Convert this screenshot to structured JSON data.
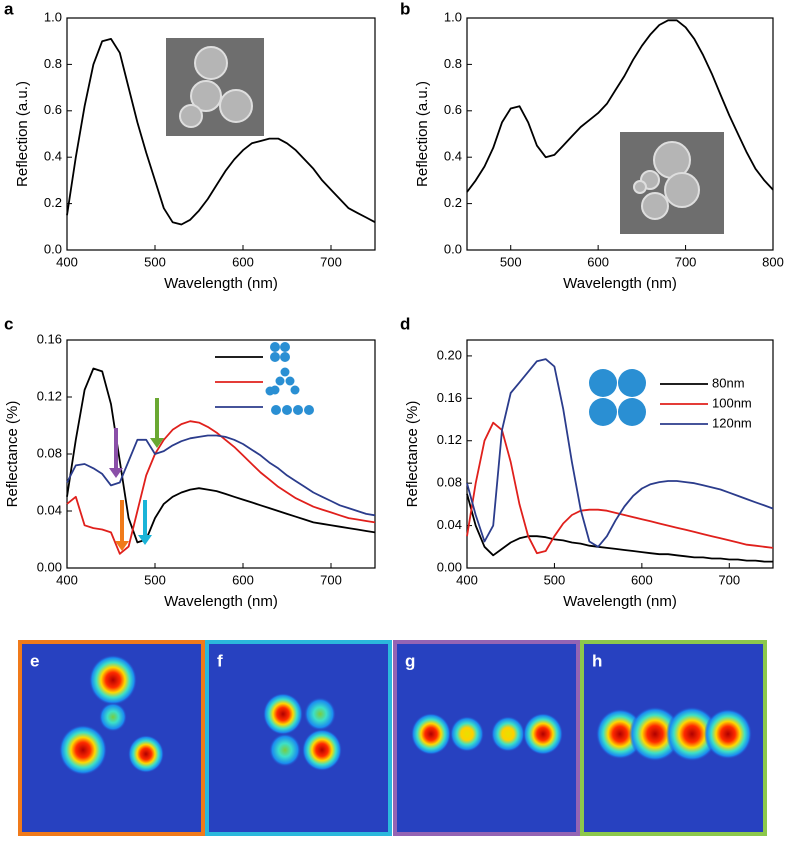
{
  "chart_data": [
    {
      "type": "line",
      "label": "a",
      "x_label": "Wavelength (nm)",
      "y_label": "Reflection (a.u.)",
      "color": "#000000",
      "xlim": [
        400,
        750
      ],
      "xticks": [
        400,
        500,
        600,
        700
      ],
      "ylim": [
        0,
        1
      ],
      "yticks": [
        {
          "value": 0,
          "label": "0.0"
        },
        0.2,
        0.4,
        0.6,
        0.8,
        {
          "value": 1,
          "label": "1.0"
        }
      ],
      "x": [
        400,
        410,
        420,
        430,
        440,
        450,
        460,
        470,
        480,
        490,
        500,
        510,
        520,
        530,
        540,
        550,
        560,
        570,
        580,
        590,
        600,
        610,
        620,
        630,
        640,
        650,
        660,
        670,
        680,
        690,
        700,
        710,
        720,
        730,
        740,
        750
      ],
      "values": [
        0.15,
        0.4,
        0.62,
        0.8,
        0.9,
        0.91,
        0.85,
        0.7,
        0.55,
        0.42,
        0.3,
        0.18,
        0.12,
        0.11,
        0.13,
        0.17,
        0.22,
        0.28,
        0.34,
        0.39,
        0.43,
        0.46,
        0.47,
        0.48,
        0.48,
        0.46,
        0.43,
        0.39,
        0.35,
        0.3,
        0.26,
        0.22,
        0.18,
        0.16,
        0.14,
        0.12
      ]
    },
    {
      "type": "line",
      "label": "b",
      "x_label": "Wavelength (nm)",
      "y_label": "Reflection (a.u.)",
      "color": "#000000",
      "xlim": [
        450,
        800
      ],
      "xticks": [
        500,
        600,
        700,
        800
      ],
      "ylim": [
        0,
        1
      ],
      "yticks": [
        {
          "value": 0,
          "label": "0.0"
        },
        0.2,
        0.4,
        0.6,
        0.8,
        {
          "value": 1,
          "label": "1.0"
        }
      ],
      "x": [
        450,
        460,
        470,
        480,
        490,
        500,
        510,
        520,
        530,
        540,
        550,
        560,
        570,
        580,
        590,
        600,
        610,
        620,
        630,
        640,
        650,
        660,
        670,
        680,
        690,
        700,
        710,
        720,
        730,
        740,
        750,
        760,
        770,
        780,
        790,
        800
      ],
      "values": [
        0.25,
        0.3,
        0.36,
        0.44,
        0.55,
        0.61,
        0.62,
        0.55,
        0.45,
        0.4,
        0.41,
        0.45,
        0.49,
        0.53,
        0.56,
        0.59,
        0.63,
        0.69,
        0.75,
        0.82,
        0.88,
        0.93,
        0.97,
        0.99,
        0.99,
        0.96,
        0.91,
        0.84,
        0.76,
        0.67,
        0.58,
        0.5,
        0.42,
        0.35,
        0.3,
        0.26
      ]
    },
    {
      "type": "line",
      "label": "c",
      "x_label": "Wavelength (nm)",
      "y_label": "Reflectance (%)",
      "xlim": [
        400,
        750
      ],
      "xticks": [
        400,
        500,
        600,
        700
      ],
      "ylim": [
        0,
        0.16
      ],
      "yticks": [
        {
          "value": 0,
          "label": "0.00"
        },
        0.04,
        0.08,
        0.12,
        0.16
      ],
      "x": [
        400,
        410,
        420,
        430,
        440,
        450,
        460,
        470,
        480,
        490,
        500,
        510,
        520,
        530,
        540,
        550,
        560,
        570,
        580,
        590,
        600,
        610,
        620,
        630,
        640,
        650,
        660,
        670,
        680,
        690,
        700,
        710,
        720,
        730,
        740,
        750
      ],
      "series": [
        {
          "color": "#000000",
          "values": [
            0.05,
            0.09,
            0.125,
            0.14,
            0.138,
            0.115,
            0.075,
            0.035,
            0.018,
            0.02,
            0.035,
            0.045,
            0.05,
            0.053,
            0.055,
            0.056,
            0.055,
            0.054,
            0.052,
            0.05,
            0.048,
            0.046,
            0.044,
            0.042,
            0.04,
            0.038,
            0.036,
            0.034,
            0.032,
            0.031,
            0.03,
            0.029,
            0.028,
            0.027,
            0.026,
            0.025
          ]
        },
        {
          "color": "#e0201c",
          "values": [
            0.045,
            0.05,
            0.03,
            0.028,
            0.027,
            0.025,
            0.01,
            0.015,
            0.04,
            0.065,
            0.08,
            0.09,
            0.097,
            0.101,
            0.103,
            0.102,
            0.099,
            0.095,
            0.09,
            0.085,
            0.079,
            0.073,
            0.067,
            0.062,
            0.057,
            0.053,
            0.049,
            0.046,
            0.043,
            0.041,
            0.039,
            0.037,
            0.035,
            0.034,
            0.033,
            0.032
          ]
        },
        {
          "color": "#2b3c8c",
          "values": [
            0.06,
            0.072,
            0.073,
            0.07,
            0.066,
            0.058,
            0.06,
            0.075,
            0.09,
            0.09,
            0.08,
            0.082,
            0.086,
            0.089,
            0.091,
            0.092,
            0.093,
            0.093,
            0.092,
            0.09,
            0.087,
            0.083,
            0.079,
            0.074,
            0.07,
            0.065,
            0.061,
            0.057,
            0.053,
            0.05,
            0.047,
            0.044,
            0.042,
            0.04,
            0.038,
            0.037
          ]
        }
      ]
    },
    {
      "type": "line",
      "label": "d",
      "x_label": "Wavelength (nm)",
      "y_label": "Reflectance (%)",
      "xlim": [
        400,
        750
      ],
      "xticks": [
        400,
        500,
        600,
        700
      ],
      "ylim": [
        0,
        0.215
      ],
      "yticks": [
        {
          "value": 0,
          "label": "0.00"
        },
        0.04,
        0.08,
        0.12,
        0.16,
        {
          "value": 0.2,
          "label": "0.20"
        }
      ],
      "x": [
        400,
        410,
        420,
        430,
        440,
        450,
        460,
        470,
        480,
        490,
        500,
        510,
        520,
        530,
        540,
        550,
        560,
        570,
        580,
        590,
        600,
        610,
        620,
        630,
        640,
        650,
        660,
        670,
        680,
        690,
        700,
        710,
        720,
        730,
        740,
        750
      ],
      "series": [
        {
          "name": "80nm",
          "color": "#000000",
          "values": [
            0.07,
            0.04,
            0.02,
            0.012,
            0.018,
            0.024,
            0.028,
            0.03,
            0.03,
            0.029,
            0.027,
            0.026,
            0.024,
            0.023,
            0.021,
            0.02,
            0.019,
            0.018,
            0.017,
            0.016,
            0.015,
            0.014,
            0.013,
            0.013,
            0.012,
            0.011,
            0.01,
            0.01,
            0.009,
            0.009,
            0.008,
            0.008,
            0.007,
            0.007,
            0.006,
            0.006
          ]
        },
        {
          "name": "100nm",
          "color": "#e0201c",
          "values": [
            0.03,
            0.08,
            0.12,
            0.137,
            0.13,
            0.1,
            0.06,
            0.03,
            0.014,
            0.016,
            0.03,
            0.042,
            0.05,
            0.054,
            0.055,
            0.055,
            0.054,
            0.052,
            0.05,
            0.048,
            0.046,
            0.044,
            0.042,
            0.04,
            0.038,
            0.036,
            0.034,
            0.032,
            0.03,
            0.028,
            0.026,
            0.024,
            0.022,
            0.021,
            0.02,
            0.019
          ]
        },
        {
          "name": "120nm",
          "color": "#2b3c8c",
          "values": [
            0.08,
            0.05,
            0.025,
            0.04,
            0.13,
            0.165,
            0.175,
            0.185,
            0.195,
            0.197,
            0.19,
            0.15,
            0.1,
            0.055,
            0.025,
            0.02,
            0.03,
            0.045,
            0.058,
            0.068,
            0.075,
            0.079,
            0.081,
            0.082,
            0.082,
            0.081,
            0.08,
            0.078,
            0.076,
            0.074,
            0.071,
            0.068,
            0.065,
            0.062,
            0.059,
            0.056
          ]
        }
      ]
    }
  ],
  "maps": [
    {
      "label": "e"
    },
    {
      "label": "f"
    },
    {
      "label": "g"
    },
    {
      "label": "h"
    }
  ]
}
